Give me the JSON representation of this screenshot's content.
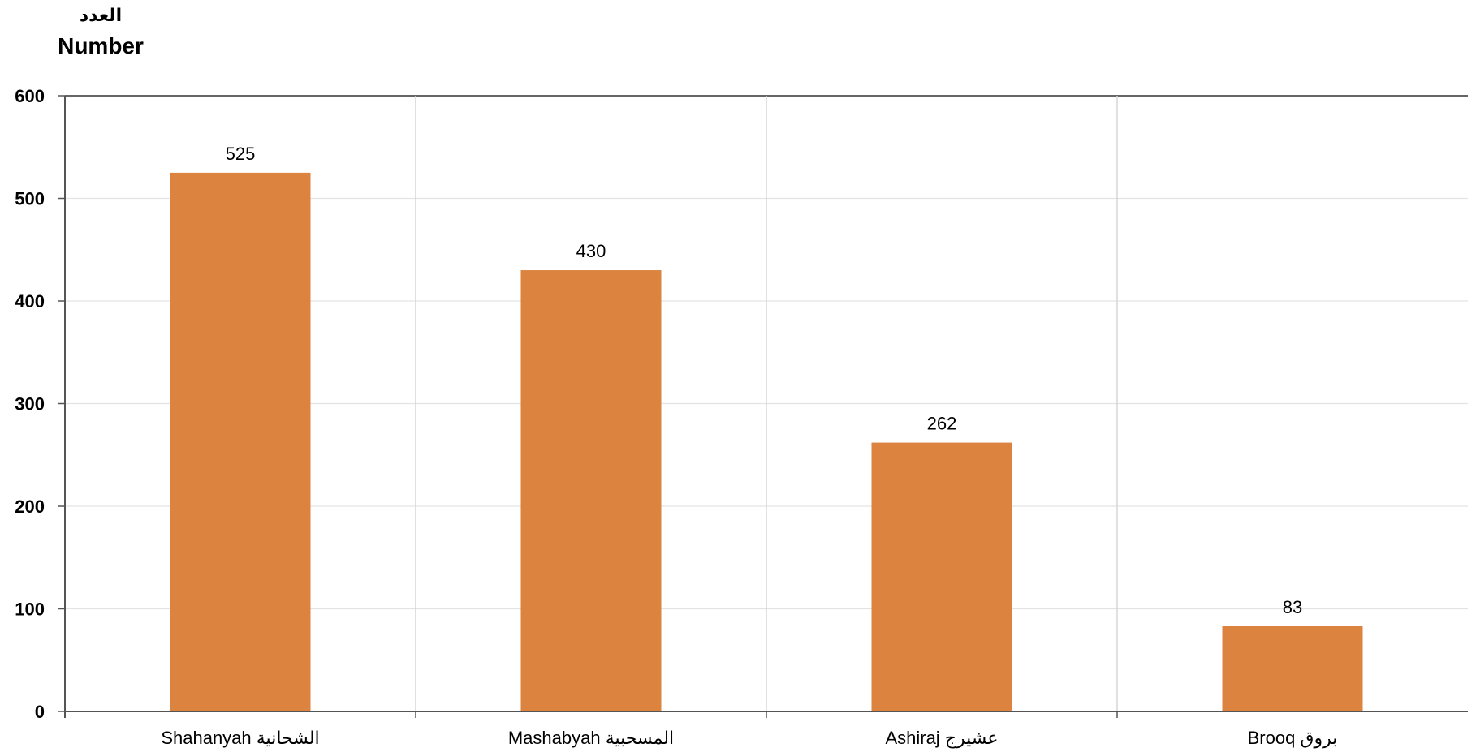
{
  "chart_data": {
    "type": "bar",
    "ylabel_ar": "العدد",
    "ylabel_en": "Number",
    "categories": [
      "Shahanyah الشحانية",
      "Mashabyah المسحبية",
      "Ashiraj عشيرج",
      "Brooq بروق"
    ],
    "values": [
      525,
      430,
      262,
      83
    ],
    "ylim": [
      0,
      600
    ],
    "yticks": [
      0,
      100,
      200,
      300,
      400,
      500,
      600
    ],
    "bar_color": "#DB833F",
    "grid": true,
    "show_data_labels": true
  }
}
